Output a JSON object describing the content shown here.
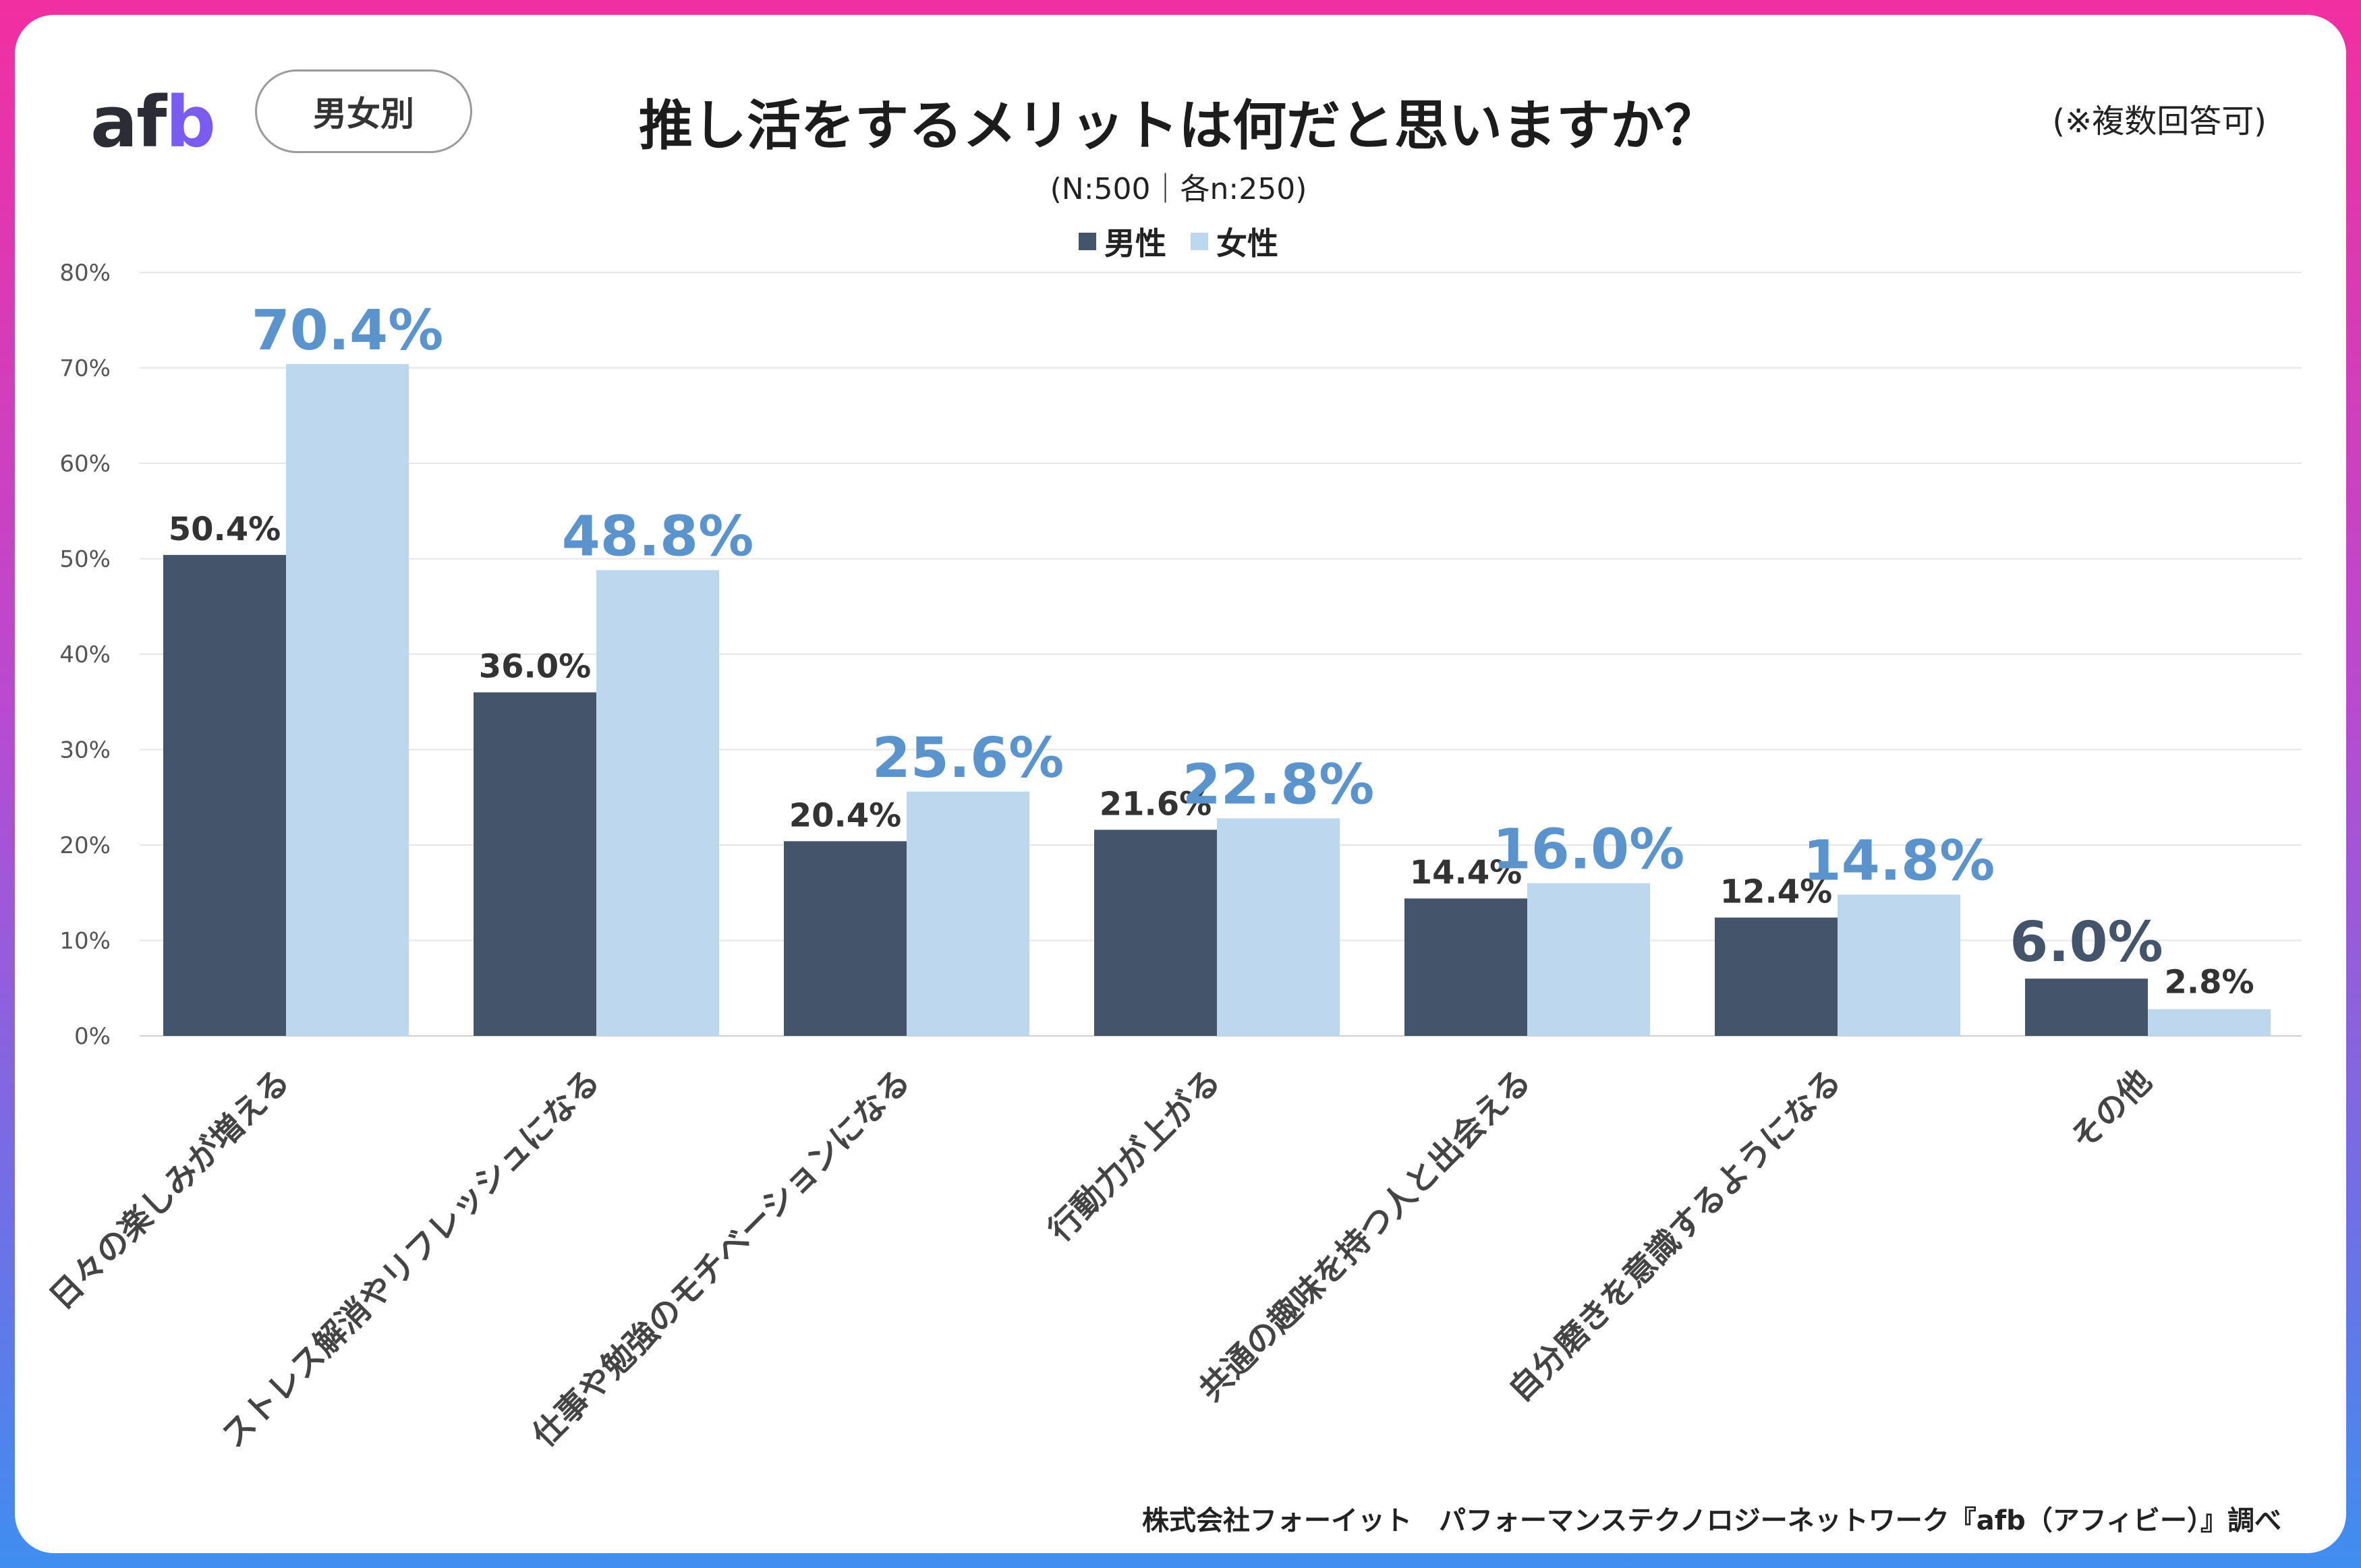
{
  "header": {
    "logo_prefix": "af",
    "logo_accent": "b",
    "badge": "男女別",
    "title": "推し活をするメリットは何だと思いますか？",
    "subtitle": "(N:500｜各n:250)",
    "note": "(※複数回答可)"
  },
  "legend": {
    "male": "男性",
    "female": "女性"
  },
  "colors": {
    "male": "#44546a",
    "female": "#bdd7ee",
    "highlight_female": "#5b94cd",
    "highlight_male": "#44546a"
  },
  "chart_data": {
    "type": "bar",
    "title": "推し活をするメリットは何だと思いますか？",
    "xlabel": "",
    "ylabel": "",
    "ylim": [
      0,
      80
    ],
    "yticks": [
      "0%",
      "10%",
      "20%",
      "30%",
      "40%",
      "50%",
      "60%",
      "70%",
      "80%"
    ],
    "categories": [
      "日々の楽しみが増える",
      "ストレス解消やリフレッシュになる",
      "仕事や勉強のモチベーションになる",
      "行動力が上がる",
      "共通の趣味を持つ人と出会える",
      "自分磨きを意識するようになる",
      "その他"
    ],
    "series": [
      {
        "name": "男性",
        "values": [
          50.4,
          36.0,
          20.4,
          21.6,
          14.4,
          12.4,
          6.0
        ],
        "labels": [
          "50.4%",
          "36.0%",
          "20.4%",
          "21.6%",
          "14.4%",
          "12.4%",
          "6.0%"
        ],
        "highlight": [
          false,
          false,
          false,
          false,
          false,
          false,
          true
        ]
      },
      {
        "name": "女性",
        "values": [
          70.4,
          48.8,
          25.6,
          22.8,
          16.0,
          14.8,
          2.8
        ],
        "labels": [
          "70.4%",
          "48.8%",
          "25.6%",
          "22.8%",
          "16.0%",
          "14.8%",
          "2.8%"
        ],
        "highlight": [
          true,
          true,
          true,
          true,
          true,
          true,
          false
        ]
      }
    ]
  },
  "source": "株式会社フォーイット　パフォーマンステクノロジーネットワーク『afb（アフィビー）』調べ"
}
